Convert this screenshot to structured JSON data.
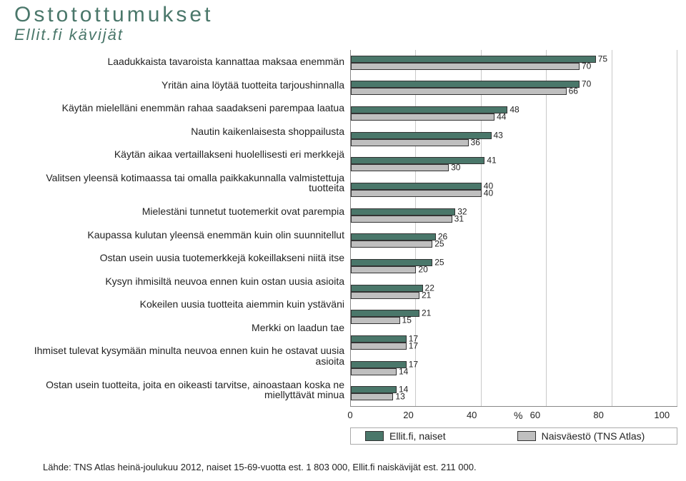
{
  "header": {
    "title": "Ostotottumukset",
    "subtitle": "Ellit.fi kävijät"
  },
  "chart": {
    "type": "bar",
    "x_unit": "%",
    "x_ticks": [
      0,
      20,
      40,
      60,
      80,
      100
    ],
    "x_max": 100,
    "series": [
      {
        "label": "Ellit.fi, naiset",
        "color": "#4a776a"
      },
      {
        "label": "Naisväestö (TNS Atlas)",
        "color": "#bfbfbf"
      }
    ],
    "categories": [
      {
        "label": "Laadukkaista tavaroista kannattaa maksaa enemmän",
        "v": [
          75,
          70
        ]
      },
      {
        "label": "Yritän aina löytää tuotteita tarjoushinnalla",
        "v": [
          70,
          66
        ]
      },
      {
        "label": "Käytän mielelläni enemmän rahaa saadakseni parempaa laatua",
        "v": [
          48,
          44
        ]
      },
      {
        "label": "Nautin kaikenlaisesta shoppailusta",
        "v": [
          43,
          36
        ]
      },
      {
        "label": "Käytän aikaa vertaillakseni huolellisesti eri merkkejä",
        "v": [
          41,
          30
        ]
      },
      {
        "label": "Valitsen yleensä kotimaassa tai omalla paikkakunnalla valmistettuja tuotteita",
        "v": [
          40,
          40
        ]
      },
      {
        "label": "Mielestäni tunnetut tuotemerkit ovat parempia",
        "v": [
          32,
          31
        ]
      },
      {
        "label": "Kaupassa kulutan yleensä enemmän kuin olin suunnitellut",
        "v": [
          26,
          25
        ]
      },
      {
        "label": "Ostan usein uusia tuotemerkkejä kokeillakseni niitä itse",
        "v": [
          25,
          20
        ]
      },
      {
        "label": "Kysyn ihmisiltä neuvoa ennen kuin ostan uusia asioita",
        "v": [
          22,
          21
        ]
      },
      {
        "label": "Kokeilen uusia tuotteita aiemmin kuin ystäväni",
        "v": [
          21,
          15
        ]
      },
      {
        "label": "Merkki on laadun tae",
        "v": [
          17,
          17
        ]
      },
      {
        "label": "Ihmiset tulevat kysymään minulta neuvoa ennen kuin he ostavat uusia asioita",
        "v": [
          17,
          14
        ]
      },
      {
        "label": "Ostan usein tuotteita, joita en oikeasti tarvitse, ainoastaan koska ne miellyttävät minua",
        "v": [
          14,
          13
        ]
      }
    ]
  },
  "footer": "Lähde: TNS Atlas heinä-joulukuu 2012, naiset 15-69-vuotta est. 1 803 000, Ellit.fi naiskävijät est. 211 000."
}
